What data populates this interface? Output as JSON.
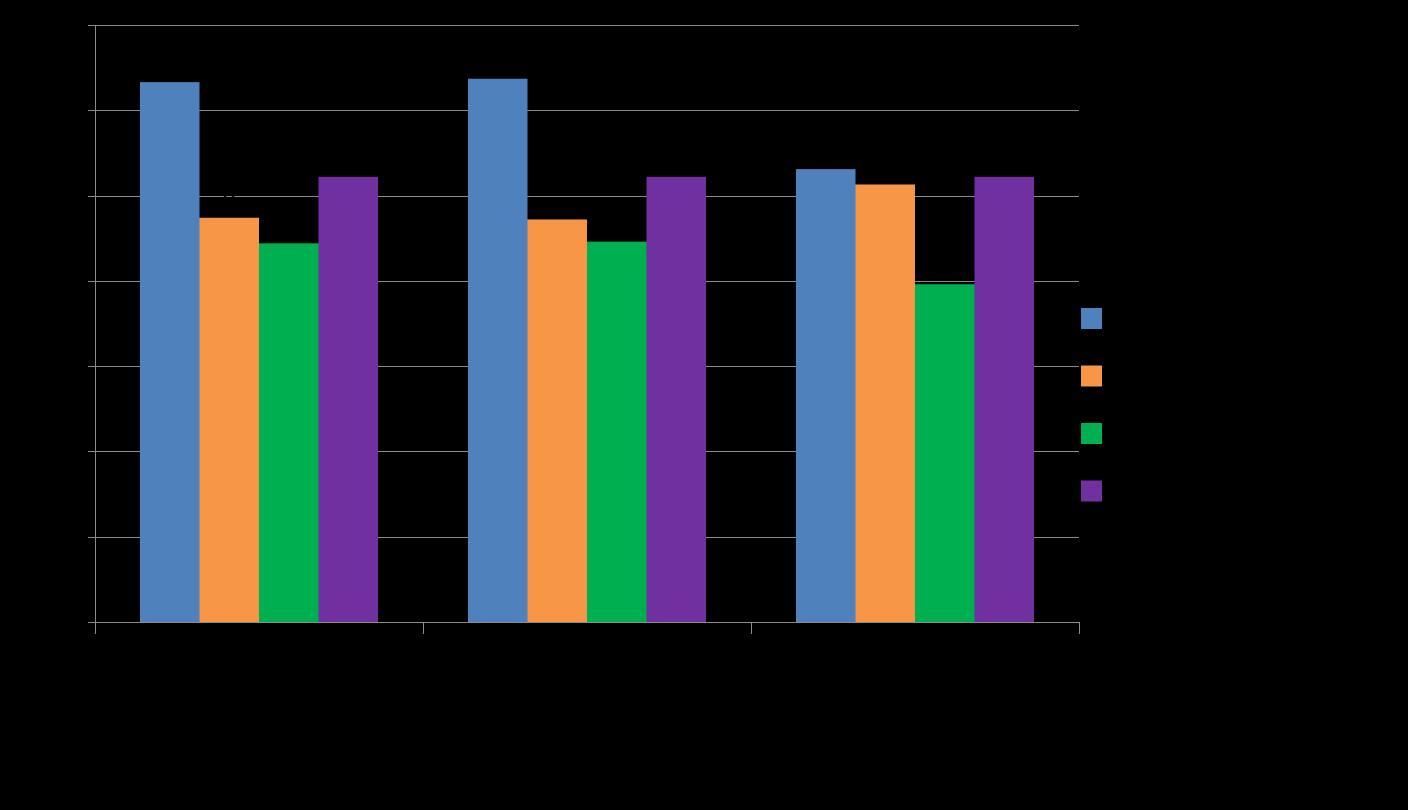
{
  "chart_data": {
    "type": "bar",
    "title": "",
    "xlabel": "",
    "ylabel": "",
    "ylim": [
      0,
      0.7
    ],
    "y_gridline_step": 0.1,
    "grid": true,
    "legend_position": "right",
    "categories": [
      "",
      "",
      ""
    ],
    "series": [
      {
        "color": "#4F81BD",
        "values": [
          0.633,
          0.637,
          0.531
        ]
      },
      {
        "color": "#F79646",
        "values": [
          0.474,
          0.472,
          0.513
        ]
      },
      {
        "color": "#00B050",
        "values": [
          0.444,
          0.446,
          0.396
        ]
      },
      {
        "color": "#7030A0",
        "values": [
          0.522,
          0.522,
          0.522
        ]
      }
    ],
    "data_labels": [
      {
        "series": 1,
        "category": 0,
        "text": "5"
      },
      {
        "series": 2,
        "category": 0,
        "text": "%"
      },
      {
        "series": 2,
        "category": 1,
        "text": "%"
      },
      {
        "series": 2,
        "category": 2,
        "text": "3"
      },
      {
        "series": 3,
        "category": 2,
        "text": "%"
      }
    ]
  }
}
